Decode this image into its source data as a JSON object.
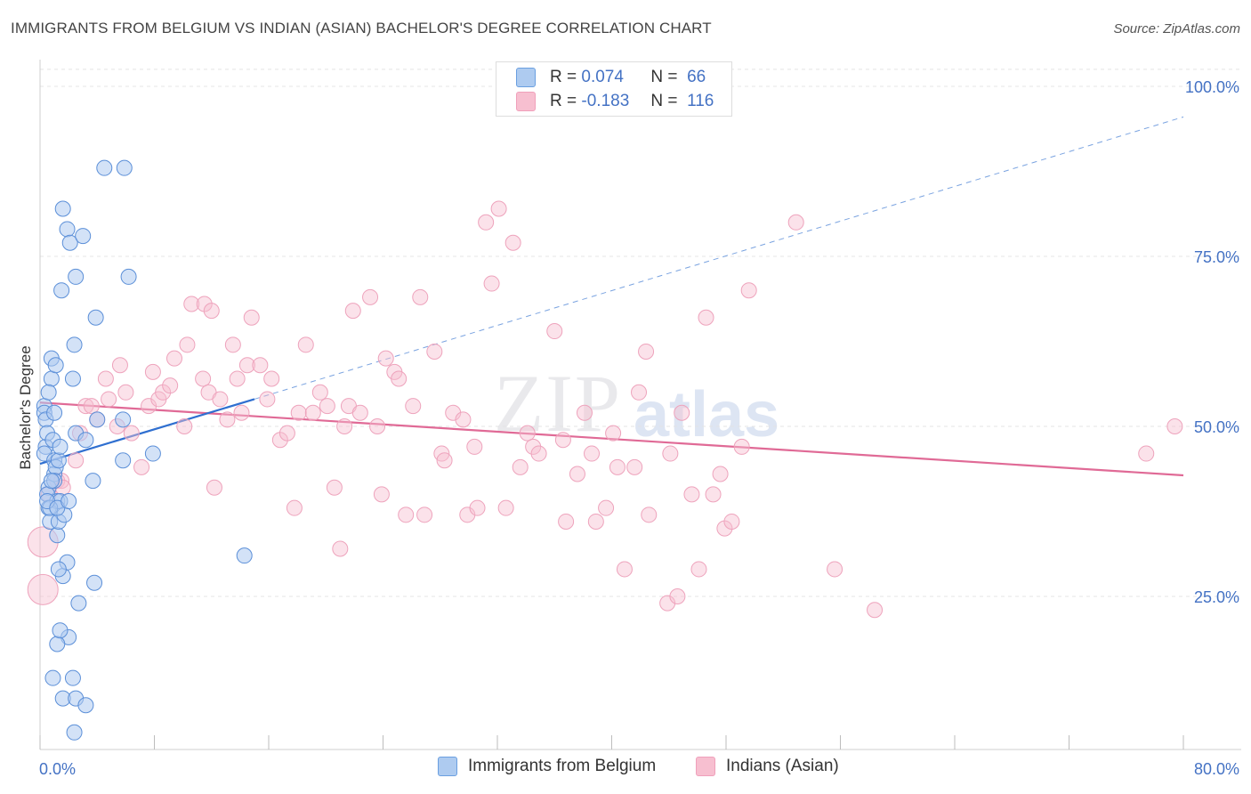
{
  "title": "IMMIGRANTS FROM BELGIUM VS INDIAN (ASIAN) BACHELOR'S DEGREE CORRELATION CHART",
  "source": "Source: ZipAtlas.com",
  "watermark": {
    "zip": "ZIP",
    "atlas": "atlas"
  },
  "legend": {
    "rows": [
      {
        "r_label": "R =",
        "r_value": "0.074",
        "n_label": "N =",
        "n_value": "66",
        "color": "#aecbf0"
      },
      {
        "r_label": "R =",
        "r_value": "-0.183",
        "n_label": "N =",
        "n_value": "116",
        "color": "#f7bfd0"
      }
    ]
  },
  "bottom_legend": {
    "items": [
      {
        "label": "Immigrants from Belgium",
        "color": "#aecbf0"
      },
      {
        "label": "Indians (Asian)",
        "color": "#f7bfd0"
      }
    ]
  },
  "chart_data": {
    "type": "scatter",
    "title": "IMMIGRANTS FROM BELGIUM VS INDIAN (ASIAN) BACHELOR'S DEGREE CORRELATION CHART",
    "xlabel": "",
    "ylabel": "Bachelor's Degree",
    "xlim": [
      0,
      80
    ],
    "ylim": [
      0,
      105
    ],
    "x_tick_labels": [
      "0.0%",
      "80.0%"
    ],
    "y_tick_labels": [
      "25.0%",
      "50.0%",
      "75.0%",
      "100.0%"
    ],
    "y_ticks": [
      25,
      50,
      75,
      100
    ],
    "colors": {
      "belgium": "#6a9fe0",
      "indian": "#f0a0bb",
      "belgium_line": "#2f6fd0",
      "indian_line": "#e06a96",
      "tick_text": "#4472c4"
    },
    "series": [
      {
        "name": "Immigrants from Belgium",
        "R": 0.074,
        "N": 66,
        "trend": {
          "x": [
            0,
            15
          ],
          "y": [
            44.5,
            54.0
          ]
        },
        "trend_extended": {
          "x": [
            15,
            80
          ],
          "y": [
            54.0,
            95.5
          ]
        },
        "points": [
          [
            0.3,
            53
          ],
          [
            0.3,
            52
          ],
          [
            0.4,
            51
          ],
          [
            0.4,
            47
          ],
          [
            0.3,
            46
          ],
          [
            0.5,
            49
          ],
          [
            0.6,
            41
          ],
          [
            0.5,
            40
          ],
          [
            0.6,
            38
          ],
          [
            0.7,
            36
          ],
          [
            0.8,
            57
          ],
          [
            0.8,
            60
          ],
          [
            0.9,
            48
          ],
          [
            1.0,
            52
          ],
          [
            1.0,
            45
          ],
          [
            1.0,
            43
          ],
          [
            1.1,
            44
          ],
          [
            1.2,
            34
          ],
          [
            1.2,
            39
          ],
          [
            1.3,
            36
          ],
          [
            1.1,
            59
          ],
          [
            1.3,
            45
          ],
          [
            1.4,
            47
          ],
          [
            1.4,
            39
          ],
          [
            1.6,
            28
          ],
          [
            1.7,
            37
          ],
          [
            1.6,
            82
          ],
          [
            1.9,
            79
          ],
          [
            1.9,
            30
          ],
          [
            2.0,
            19
          ],
          [
            2.1,
            77
          ],
          [
            2.3,
            57
          ],
          [
            2.4,
            62
          ],
          [
            2.5,
            49
          ],
          [
            2.5,
            72
          ],
          [
            2.7,
            24
          ],
          [
            3.0,
            78
          ],
          [
            3.2,
            48
          ],
          [
            3.7,
            42
          ],
          [
            3.8,
            27
          ],
          [
            3.9,
            66
          ],
          [
            4.0,
            51
          ],
          [
            4.5,
            88
          ],
          [
            5.9,
            88
          ],
          [
            5.8,
            51
          ],
          [
            5.8,
            45
          ],
          [
            6.2,
            72
          ],
          [
            7.9,
            46
          ],
          [
            14.3,
            31
          ],
          [
            1.5,
            70
          ],
          [
            1.2,
            18
          ],
          [
            1.4,
            20
          ],
          [
            0.9,
            13
          ],
          [
            1.6,
            10
          ],
          [
            2.3,
            13
          ],
          [
            2.5,
            10
          ],
          [
            3.2,
            9
          ],
          [
            2.4,
            5
          ],
          [
            0.6,
            55
          ],
          [
            0.7,
            38
          ],
          [
            1.0,
            42
          ],
          [
            0.5,
            39
          ],
          [
            1.3,
            29
          ],
          [
            0.8,
            42
          ],
          [
            1.2,
            38
          ],
          [
            2.0,
            39
          ]
        ]
      },
      {
        "name": "Indians (Asian)",
        "R": -0.183,
        "N": 116,
        "trend": {
          "x": [
            0,
            80
          ],
          "y": [
            53.5,
            42.8
          ]
        },
        "points": [
          [
            0.2,
            33
          ],
          [
            0.2,
            26
          ],
          [
            0.6,
            40
          ],
          [
            1.2,
            42
          ],
          [
            1.5,
            42
          ],
          [
            1.6,
            41
          ],
          [
            2.5,
            45
          ],
          [
            2.8,
            49
          ],
          [
            3.2,
            53
          ],
          [
            3.6,
            53
          ],
          [
            4.0,
            51
          ],
          [
            4.6,
            57
          ],
          [
            4.8,
            54
          ],
          [
            5.4,
            50
          ],
          [
            5.6,
            59
          ],
          [
            6.0,
            55
          ],
          [
            6.4,
            49
          ],
          [
            7.1,
            44
          ],
          [
            7.6,
            53
          ],
          [
            7.9,
            58
          ],
          [
            8.3,
            54
          ],
          [
            8.6,
            55
          ],
          [
            9.1,
            56
          ],
          [
            9.4,
            60
          ],
          [
            10.1,
            50
          ],
          [
            10.3,
            62
          ],
          [
            10.6,
            68
          ],
          [
            11.4,
            57
          ],
          [
            11.5,
            68
          ],
          [
            11.8,
            55
          ],
          [
            12.2,
            41
          ],
          [
            12.6,
            54
          ],
          [
            13.1,
            51
          ],
          [
            13.5,
            62
          ],
          [
            13.8,
            57
          ],
          [
            14.1,
            52
          ],
          [
            14.5,
            59
          ],
          [
            14.8,
            66
          ],
          [
            15.4,
            59
          ],
          [
            15.9,
            54
          ],
          [
            16.2,
            57
          ],
          [
            16.8,
            48
          ],
          [
            17.3,
            49
          ],
          [
            17.8,
            38
          ],
          [
            18.1,
            52
          ],
          [
            18.6,
            62
          ],
          [
            19.1,
            52
          ],
          [
            19.6,
            55
          ],
          [
            20.1,
            53
          ],
          [
            20.6,
            41
          ],
          [
            21.0,
            32
          ],
          [
            21.6,
            53
          ],
          [
            21.9,
            67
          ],
          [
            22.4,
            52
          ],
          [
            23.1,
            69
          ],
          [
            23.6,
            50
          ],
          [
            23.9,
            40
          ],
          [
            24.2,
            60
          ],
          [
            24.8,
            58
          ],
          [
            25.1,
            57
          ],
          [
            25.6,
            37
          ],
          [
            26.1,
            53
          ],
          [
            26.6,
            69
          ],
          [
            26.9,
            37
          ],
          [
            27.6,
            61
          ],
          [
            28.1,
            46
          ],
          [
            28.3,
            45
          ],
          [
            28.9,
            52
          ],
          [
            29.6,
            51
          ],
          [
            29.9,
            37
          ],
          [
            30.4,
            47
          ],
          [
            30.6,
            38
          ],
          [
            31.2,
            80
          ],
          [
            31.6,
            71
          ],
          [
            32.1,
            82
          ],
          [
            32.6,
            38
          ],
          [
            33.1,
            77
          ],
          [
            33.6,
            44
          ],
          [
            34.1,
            49
          ],
          [
            34.5,
            47
          ],
          [
            34.9,
            46
          ],
          [
            36.0,
            64
          ],
          [
            36.6,
            48
          ],
          [
            36.8,
            36
          ],
          [
            37.6,
            43
          ],
          [
            38.1,
            52
          ],
          [
            38.6,
            46
          ],
          [
            38.9,
            36
          ],
          [
            39.6,
            38
          ],
          [
            40.1,
            49
          ],
          [
            40.4,
            44
          ],
          [
            40.9,
            29
          ],
          [
            41.6,
            44
          ],
          [
            41.9,
            55
          ],
          [
            42.4,
            61
          ],
          [
            42.6,
            37
          ],
          [
            43.9,
            24
          ],
          [
            44.1,
            46
          ],
          [
            44.6,
            25
          ],
          [
            44.9,
            52
          ],
          [
            45.6,
            40
          ],
          [
            46.1,
            29
          ],
          [
            46.6,
            66
          ],
          [
            47.1,
            40
          ],
          [
            47.6,
            43
          ],
          [
            47.9,
            35
          ],
          [
            48.4,
            36
          ],
          [
            49.1,
            47
          ],
          [
            49.6,
            70
          ],
          [
            52.9,
            80
          ],
          [
            55.6,
            29
          ],
          [
            58.4,
            23
          ],
          [
            77.4,
            46
          ],
          [
            79.4,
            50
          ],
          [
            12.0,
            67
          ],
          [
            21.3,
            50
          ]
        ]
      }
    ]
  }
}
